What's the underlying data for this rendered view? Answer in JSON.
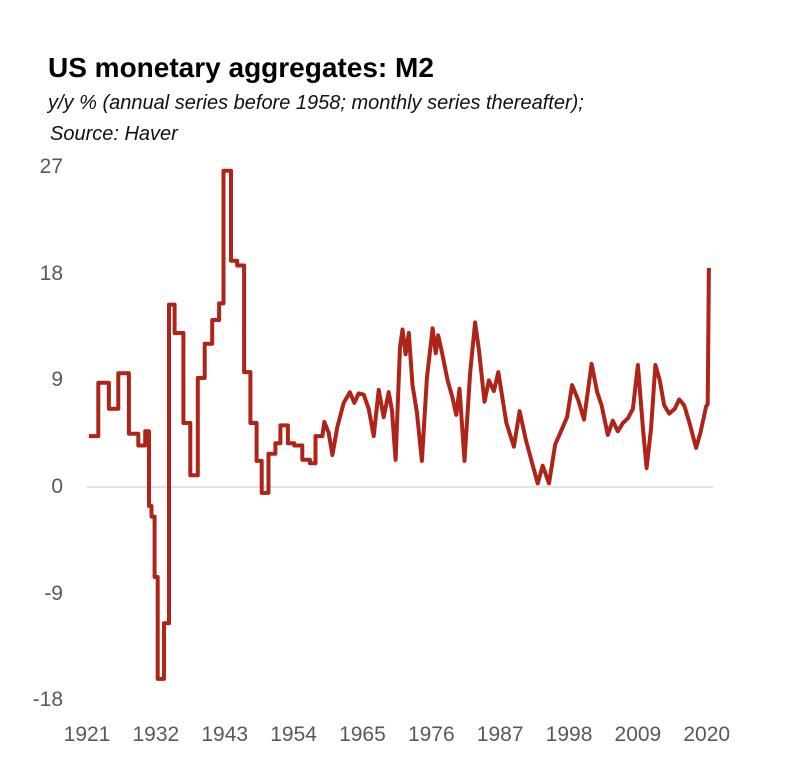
{
  "header": {
    "title": "US monetary aggregates: M2",
    "subtitle": "y/y % (annual series before 1958; monthly series thereafter);",
    "source": "Source: Haver"
  },
  "chart_data": {
    "type": "line",
    "title": "US monetary aggregates: M2",
    "subtitle": "y/y % (annual series before 1958; monthly series thereafter);",
    "source_note": "Source: Haver",
    "xlabel": "",
    "ylabel": "",
    "ylim": [
      -18,
      27
    ],
    "xlim": [
      1921,
      2021
    ],
    "yticks": [
      27,
      18,
      9,
      0,
      -9,
      -18
    ],
    "xticks": [
      1921,
      1932,
      1943,
      1954,
      1965,
      1976,
      1987,
      1998,
      2009,
      2020
    ],
    "grid": "horizontal zero line only",
    "legend": "none",
    "line_color": "#AF2419",
    "zero_line_color": "#D9D9D9",
    "tick_color": "#595959",
    "annual_step_until": 1958.6,
    "annual_series_step": [
      [
        1921.3,
        4.3
      ],
      [
        1922.8,
        8.8
      ],
      [
        1924.5,
        6.6
      ],
      [
        1926.0,
        9.6
      ],
      [
        1927.7,
        4.5
      ],
      [
        1929.2,
        3.5
      ],
      [
        1930.3,
        4.7
      ],
      [
        1930.9,
        -1.6
      ],
      [
        1931.3,
        -2.5
      ],
      [
        1931.8,
        -7.6
      ],
      [
        1932.3,
        -16.2
      ],
      [
        1933.3,
        -11.5
      ],
      [
        1934.1,
        15.4
      ],
      [
        1935.0,
        13.0
      ],
      [
        1936.4,
        5.4
      ],
      [
        1937.5,
        1.0
      ],
      [
        1938.7,
        9.2
      ],
      [
        1939.8,
        12.1
      ],
      [
        1941.0,
        14.1
      ],
      [
        1942.1,
        15.5
      ],
      [
        1942.8,
        26.7
      ],
      [
        1944.0,
        19.1
      ],
      [
        1945.0,
        18.7
      ],
      [
        1946.1,
        9.7
      ],
      [
        1947.1,
        5.4
      ],
      [
        1948.1,
        2.2
      ],
      [
        1948.9,
        -0.5
      ],
      [
        1950.0,
        2.8
      ],
      [
        1951.1,
        3.7
      ],
      [
        1951.9,
        5.2
      ],
      [
        1953.1,
        3.7
      ],
      [
        1954.1,
        3.5
      ],
      [
        1955.4,
        2.3
      ],
      [
        1956.6,
        2.0
      ],
      [
        1957.5,
        4.3
      ]
    ],
    "monthly_series": [
      [
        1958.9,
        5.5
      ],
      [
        1959.6,
        4.6
      ],
      [
        1960.2,
        2.7
      ],
      [
        1961.0,
        5.1
      ],
      [
        1962.0,
        7.1
      ],
      [
        1963.0,
        8.0
      ],
      [
        1963.7,
        7.1
      ],
      [
        1964.4,
        7.9
      ],
      [
        1965.2,
        7.8
      ],
      [
        1966.0,
        6.6
      ],
      [
        1966.8,
        4.3
      ],
      [
        1967.6,
        8.2
      ],
      [
        1968.4,
        5.9
      ],
      [
        1969.2,
        8.0
      ],
      [
        1969.7,
        6.5
      ],
      [
        1970.3,
        2.3
      ],
      [
        1971.0,
        11.8
      ],
      [
        1971.4,
        13.3
      ],
      [
        1971.9,
        11.2
      ],
      [
        1972.4,
        13.0
      ],
      [
        1973.0,
        8.6
      ],
      [
        1973.7,
        6.3
      ],
      [
        1974.5,
        2.2
      ],
      [
        1975.3,
        9.2
      ],
      [
        1976.2,
        13.4
      ],
      [
        1976.7,
        11.3
      ],
      [
        1977.1,
        12.8
      ],
      [
        1977.8,
        11.1
      ],
      [
        1978.6,
        9.0
      ],
      [
        1979.3,
        7.7
      ],
      [
        1980.0,
        6.1
      ],
      [
        1980.5,
        8.3
      ],
      [
        1981.3,
        2.2
      ],
      [
        1982.2,
        9.6
      ],
      [
        1983.0,
        13.9
      ],
      [
        1983.6,
        11.6
      ],
      [
        1984.5,
        7.2
      ],
      [
        1985.2,
        9.0
      ],
      [
        1986.0,
        8.1
      ],
      [
        1986.7,
        9.7
      ],
      [
        1988.0,
        5.4
      ],
      [
        1989.2,
        3.4
      ],
      [
        1990.1,
        6.4
      ],
      [
        1991.1,
        4.0
      ],
      [
        1992.0,
        2.2
      ],
      [
        1993.0,
        0.3
      ],
      [
        1993.8,
        1.8
      ],
      [
        1994.8,
        0.3
      ],
      [
        1995.8,
        3.6
      ],
      [
        1996.8,
        4.8
      ],
      [
        1997.7,
        5.9
      ],
      [
        1998.5,
        8.6
      ],
      [
        1999.5,
        7.3
      ],
      [
        2000.4,
        5.7
      ],
      [
        2001.6,
        10.4
      ],
      [
        2002.5,
        8.0
      ],
      [
        2003.2,
        6.9
      ],
      [
        2004.2,
        4.4
      ],
      [
        2005.0,
        5.6
      ],
      [
        2005.8,
        4.7
      ],
      [
        2006.6,
        5.4
      ],
      [
        2007.4,
        5.8
      ],
      [
        2008.2,
        6.6
      ],
      [
        2009.0,
        10.3
      ],
      [
        2009.8,
        5.0
      ],
      [
        2010.4,
        1.6
      ],
      [
        2011.1,
        4.9
      ],
      [
        2011.8,
        10.3
      ],
      [
        2012.5,
        9.0
      ],
      [
        2013.2,
        6.9
      ],
      [
        2014.0,
        6.2
      ],
      [
        2014.9,
        6.6
      ],
      [
        2015.6,
        7.4
      ],
      [
        2016.4,
        6.9
      ],
      [
        2017.2,
        5.5
      ],
      [
        2018.3,
        3.3
      ],
      [
        2019.0,
        4.6
      ],
      [
        2019.9,
        6.8
      ],
      [
        2020.15,
        7.0
      ],
      [
        2020.35,
        18.5
      ]
    ]
  }
}
